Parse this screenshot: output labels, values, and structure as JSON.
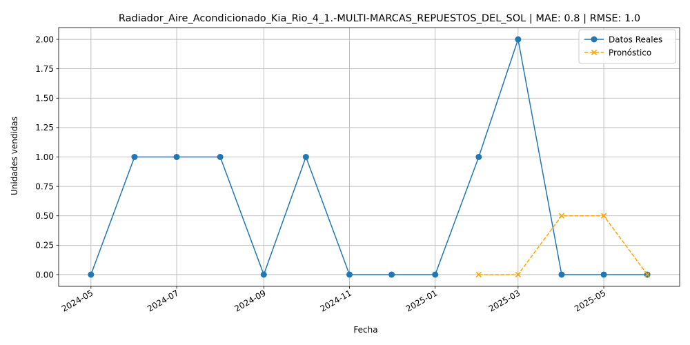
{
  "chart_data": {
    "type": "line",
    "title": "Radiador_Aire_Acondicionado_Kia_Rio_4_1.-MULTI-MARCAS_REPUESTOS_DEL_SOL | MAE: 0.8 | RMSE: 1.0",
    "xlabel": "Fecha",
    "ylabel": "Unidades vendidas",
    "xlim": [
      "2024-04-08",
      "2025-06-24"
    ],
    "ylim": [
      -0.1,
      2.1
    ],
    "x_ticks": [
      "2024-05",
      "2024-07",
      "2024-09",
      "2024-11",
      "2025-01",
      "2025-03",
      "2025-05"
    ],
    "y_ticks": [
      "0.00",
      "0.25",
      "0.50",
      "0.75",
      "1.00",
      "1.25",
      "1.50",
      "1.75",
      "2.00"
    ],
    "grid": true,
    "legend_position": "top-right",
    "series": [
      {
        "name": "Datos Reales",
        "color": "#1f77b4",
        "line_style": "solid",
        "marker": "circle",
        "x": [
          "2024-05-01",
          "2024-06-01",
          "2024-07-01",
          "2024-08-01",
          "2024-09-01",
          "2024-10-01",
          "2024-11-01",
          "2024-12-01",
          "2025-01-01",
          "2025-02-01",
          "2025-03-01",
          "2025-04-01",
          "2025-05-01",
          "2025-06-01"
        ],
        "values": [
          0,
          1,
          1,
          1,
          0,
          1,
          0,
          0,
          0,
          1,
          2,
          0,
          0,
          0
        ]
      },
      {
        "name": "Pronóstico",
        "color": "#ffa500",
        "line_style": "dashed",
        "marker": "x",
        "x": [
          "2025-02-01",
          "2025-03-01",
          "2025-04-01",
          "2025-05-01",
          "2025-06-01"
        ],
        "values": [
          0,
          0,
          0.5,
          0.5,
          0
        ]
      }
    ]
  }
}
